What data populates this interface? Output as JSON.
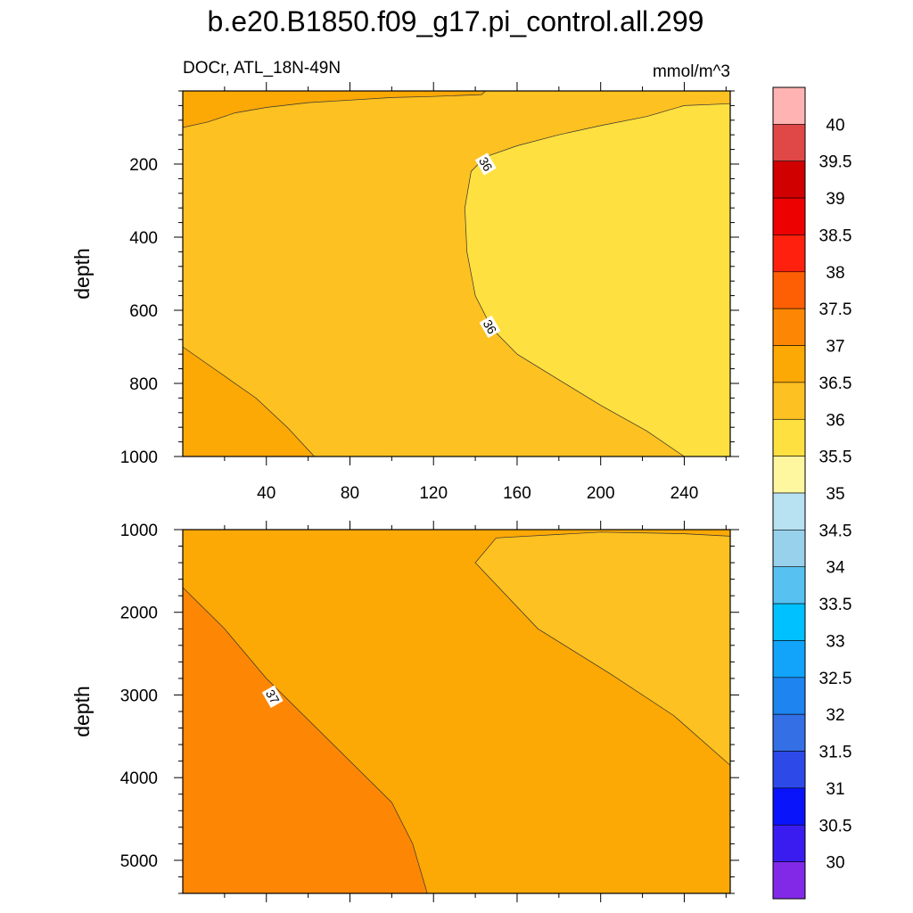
{
  "title": "b.e20.B1850.f09_g17.pi_control.all.299",
  "subtitle_left": "DOCr, ATL_18N-49N",
  "subtitle_right": "mmol/m^3",
  "chart_data": [
    {
      "type": "contour",
      "name": "upper-panel",
      "xlabel": "",
      "ylabel": "depth",
      "xlim": [
        0,
        262
      ],
      "ylim": [
        1000,
        0
      ],
      "x_ticks": [
        40,
        80,
        120,
        160,
        200,
        240
      ],
      "y_ticks": [
        200,
        400,
        600,
        800,
        1000
      ],
      "x_tick_labels_shown": true,
      "contour_labels": [
        {
          "text": "36",
          "x": 145,
          "y": 200
        },
        {
          "text": "36",
          "x": 147,
          "y": 645
        }
      ],
      "regions": [
        {
          "level_range": [
            36.0,
            36.5
          ],
          "color": "#fdc121",
          "description": "background field"
        },
        {
          "level_range": [
            36.5,
            37.0
          ],
          "color": "#fca805",
          "location": "near-surface left band (x 0-145, depth 0-100)"
        },
        {
          "level_range": [
            36.5,
            37.0
          ],
          "color": "#fca805",
          "location": "bottom-left wedge (x 0-63, depth 700-1000)"
        },
        {
          "level_range": [
            35.5,
            36.0
          ],
          "color": "#fee040",
          "location": "right lobe (x 135-262, depth 40-1000)"
        }
      ]
    },
    {
      "type": "contour",
      "name": "lower-panel",
      "xlabel": "",
      "ylabel": "depth",
      "xlim": [
        0,
        262
      ],
      "ylim": [
        5400,
        1000
      ],
      "x_ticks": [
        40,
        80,
        120,
        160,
        200,
        240
      ],
      "y_ticks": [
        1000,
        2000,
        3000,
        4000,
        5000
      ],
      "x_tick_labels_shown": false,
      "contour_labels": [
        {
          "text": "37",
          "x": 43,
          "y": 3020
        }
      ],
      "regions": [
        {
          "level_range": [
            36.5,
            37.0
          ],
          "color": "#fca805",
          "description": "background field"
        },
        {
          "level_range": [
            36.0,
            36.5
          ],
          "color": "#fdc121",
          "location": "upper-right (x 64-262, depth 1000-3850)"
        },
        {
          "level_range": [
            37.0,
            37.5
          ],
          "color": "#fd8704",
          "location": "lower-left (x 0-117, depth 1700-5400)"
        }
      ]
    }
  ],
  "colorbar": {
    "labels": [
      "40",
      "39.5",
      "39",
      "38.5",
      "38",
      "37.5",
      "37",
      "36.5",
      "36",
      "35.5",
      "35",
      "34.5",
      "34",
      "33.5",
      "33",
      "32.5",
      "32",
      "31.5",
      "31",
      "30.5",
      "30"
    ],
    "colors": [
      "#ffb3b3",
      "#e04848",
      "#d10000",
      "#ed0101",
      "#ff200d",
      "#fe5f05",
      "#fd8704",
      "#fca805",
      "#fdc121",
      "#fee040",
      "#fff6a0",
      "#b8e2f2",
      "#98d1ec",
      "#57c2f2",
      "#00c1ff",
      "#12a4fb",
      "#1e84ef",
      "#356fe5",
      "#2d4ae9",
      "#0914fa",
      "#3b1cf0",
      "#8229e8"
    ]
  }
}
